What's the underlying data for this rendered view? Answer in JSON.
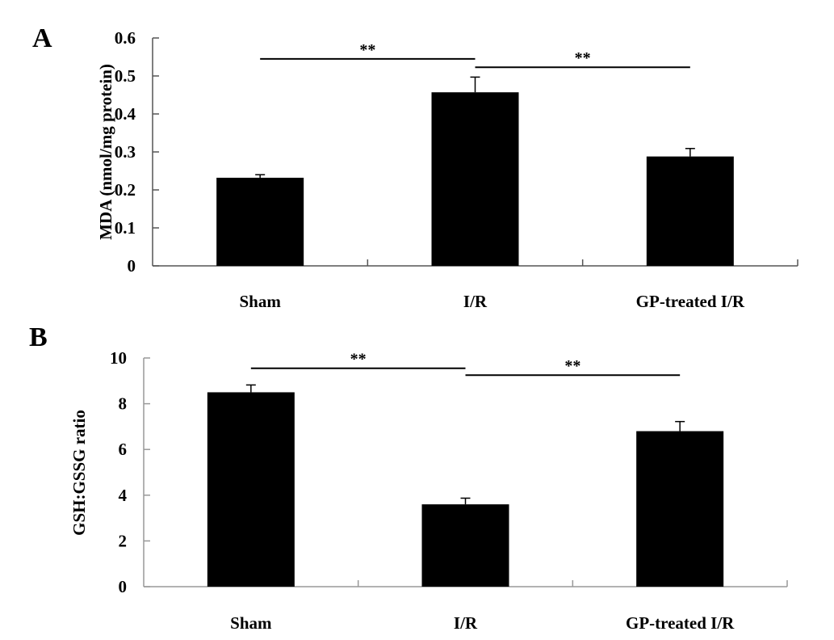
{
  "chart_data": [
    {
      "type": "bar",
      "panel_label": "A",
      "title": "",
      "xlabel": "",
      "ylabel": "MDA (nmol/mg protein)",
      "categories": [
        "Sham",
        "I/R",
        "GP-treated I/R"
      ],
      "values": [
        0.232,
        0.457,
        0.288
      ],
      "errors": [
        0.008,
        0.04,
        0.021
      ],
      "ylim": [
        0,
        0.6
      ],
      "yticks": [
        0,
        0.1,
        0.2,
        0.3,
        0.4,
        0.5,
        0.6
      ],
      "ytick_labels": [
        "0",
        "0.1",
        "0.2",
        "0.3",
        "0.4",
        "0.5",
        "0.6"
      ],
      "grid": false,
      "bar_color": "#000000",
      "annotations": [
        {
          "from": "Sham",
          "to": "I/R",
          "label": "**",
          "level": 0.545
        },
        {
          "from": "I/R",
          "to": "GP-treated I/R",
          "label": "**",
          "level": 0.523
        }
      ]
    },
    {
      "type": "bar",
      "panel_label": "B",
      "title": "",
      "xlabel": "",
      "ylabel": "GSH:GSSG ratio",
      "categories": [
        "Sham",
        "I/R",
        "GP-treated I/R"
      ],
      "values": [
        8.5,
        3.6,
        6.8
      ],
      "errors": [
        0.32,
        0.27,
        0.42
      ],
      "ylim": [
        0,
        10
      ],
      "yticks": [
        0,
        2,
        4,
        6,
        8,
        10
      ],
      "ytick_labels": [
        "0",
        "2",
        "4",
        "6",
        "8",
        "10"
      ],
      "grid": false,
      "bar_color": "#000000",
      "annotations": [
        {
          "from": "Sham",
          "to": "I/R",
          "label": "**",
          "level": 9.55
        },
        {
          "from": "I/R",
          "to": "GP-treated I/R",
          "label": "**",
          "level": 9.25
        }
      ]
    }
  ]
}
